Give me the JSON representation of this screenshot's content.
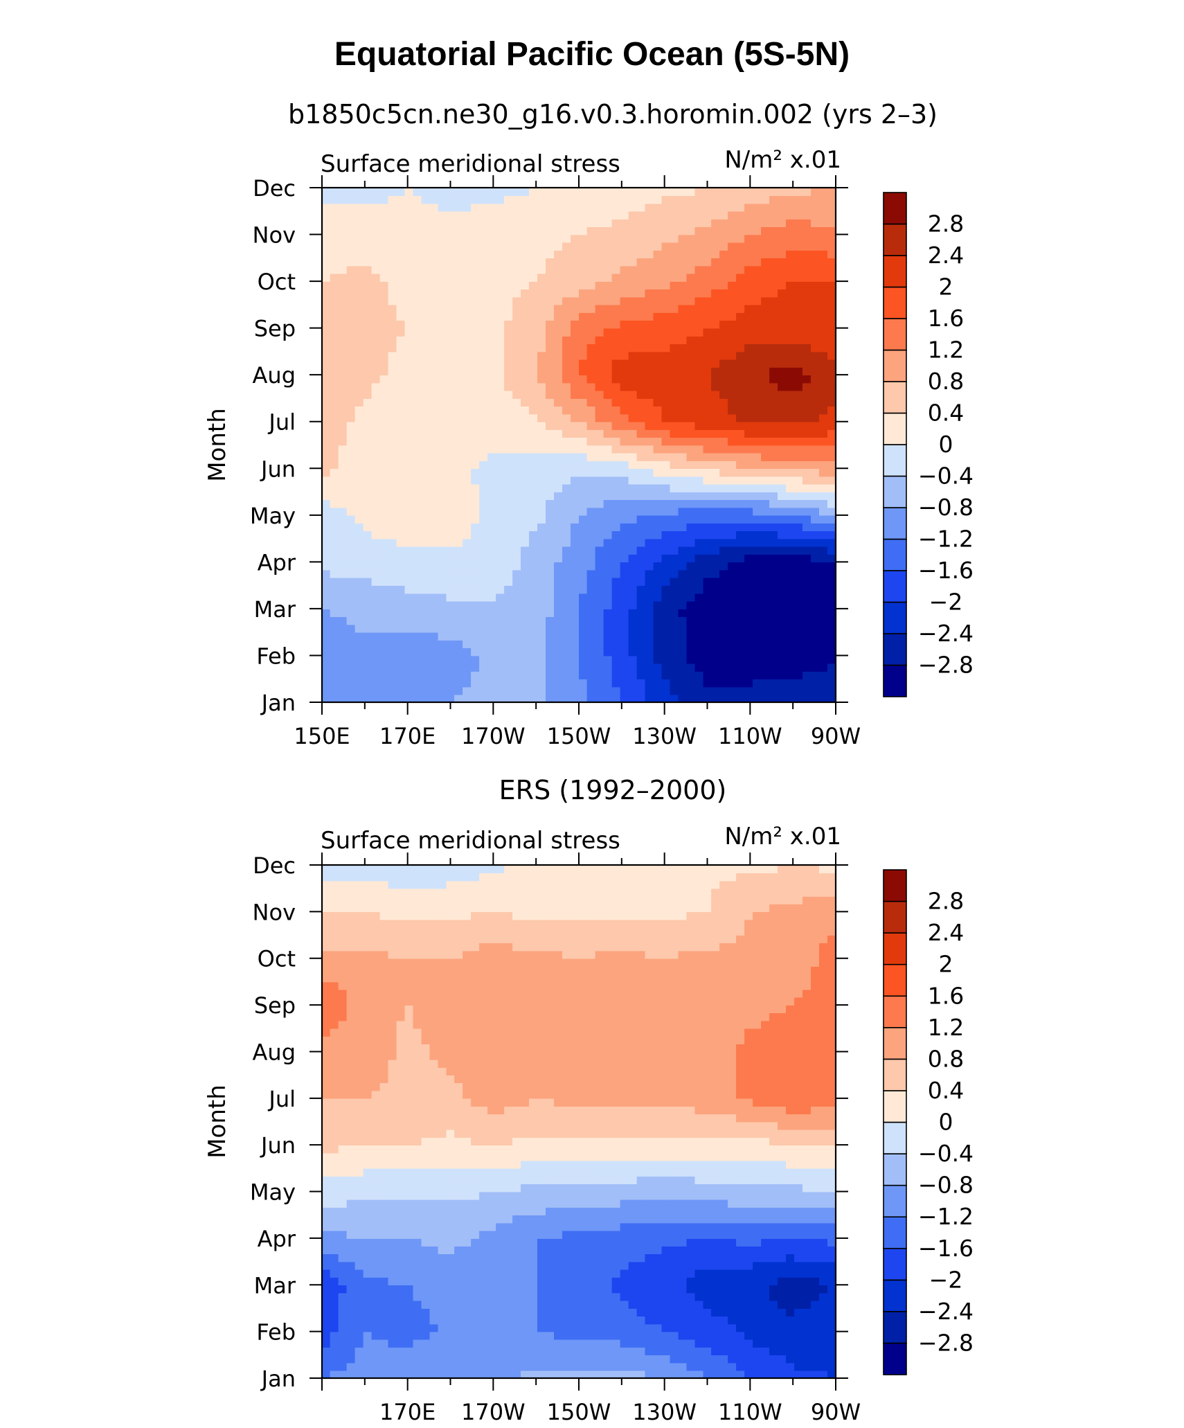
{
  "title": "Equatorial Pacific Ocean (5S-5N)",
  "colorbar_colors": [
    "#00008b",
    "#0020a8",
    "#0232d0",
    "#1d46f0",
    "#3f6ef4",
    "#6e97f7",
    "#a2bef8",
    "#cfe2fb",
    "#ffe9d6",
    "#fdc8ac",
    "#fca47e",
    "#fc7a4e",
    "#fc5422",
    "#e23a0c",
    "#b82c0c",
    "#8b0b04"
  ],
  "colorbar_labels": [
    "-2.8",
    "-2.4",
    "-2",
    "-1.6",
    "-1.2",
    "-0.8",
    "-0.4",
    "0",
    "0.4",
    "0.8",
    "1.2",
    "1.6",
    "2",
    "2.4",
    "2.8"
  ],
  "colorbar_labels_text": [
    "−2.8",
    "−2.4",
    "−2",
    "−1.6",
    "−1.2",
    "−0.8",
    "−0.4",
    "0",
    "0.4",
    "0.8",
    "1.2",
    "1.6",
    "2",
    "2.4",
    "2.8"
  ],
  "chart_data": [
    {
      "type": "heatmap",
      "title": "b1850c5cn.ne30_g16.v0.3.horomin.002 (yrs 2–3)",
      "left_label": "Surface meridional stress",
      "units": "N/m² x.01",
      "xlabel": "",
      "ylabel": "Month",
      "x_ticks": [
        "150E",
        "170E",
        "170W",
        "150W",
        "130W",
        "110W",
        "90W"
      ],
      "y_ticks": [
        "Jan",
        "Feb",
        "Mar",
        "Apr",
        "May",
        "Jun",
        "Jul",
        "Aug",
        "Sep",
        "Oct",
        "Nov",
        "Dec"
      ],
      "x_values": [
        "150E",
        "160E",
        "170E",
        "180",
        "170W",
        "160W",
        "150W",
        "140W",
        "130W",
        "120W",
        "110W",
        "100W",
        "90W"
      ],
      "months": [
        "Jan",
        "Feb",
        "Mar",
        "Apr",
        "May",
        "Jun",
        "Jul",
        "Aug",
        "Sep",
        "Oct",
        "Nov",
        "Dec"
      ],
      "values": [
        [
          -1.2,
          -1.0,
          -0.9,
          -0.8,
          -0.7,
          -0.7,
          -1.1,
          -1.6,
          -2.2,
          -2.7,
          -2.6,
          -2.5,
          -2.4
        ],
        [
          -1.0,
          -0.9,
          -1.0,
          -1.0,
          -0.7,
          -0.7,
          -1.2,
          -1.8,
          -2.6,
          -3.0,
          -3.1,
          -3.1,
          -2.9
        ],
        [
          -0.8,
          -0.7,
          -0.6,
          -0.5,
          -0.5,
          -0.6,
          -1.2,
          -1.8,
          -2.6,
          -3.1,
          -3.2,
          -3.2,
          -3.0
        ],
        [
          -0.3,
          -0.2,
          -0.1,
          -0.1,
          -0.1,
          -0.6,
          -1.0,
          -1.6,
          -2.1,
          -2.6,
          -3.0,
          -3.0,
          -2.9
        ],
        [
          -0.2,
          0.1,
          0.2,
          0.2,
          -0.1,
          -0.3,
          -0.8,
          -1.1,
          -1.3,
          -1.4,
          -1.4,
          -1.2,
          -0.8
        ],
        [
          0.5,
          0.2,
          0.2,
          0.1,
          -0.1,
          -0.2,
          -0.3,
          -0.2,
          0.2,
          0.5,
          0.7,
          0.9,
          1.0
        ],
        [
          0.6,
          0.3,
          0.1,
          0.3,
          0.2,
          0.3,
          0.8,
          1.5,
          2.0,
          2.2,
          2.5,
          2.5,
          2.3
        ],
        [
          0.8,
          0.5,
          0.3,
          0.2,
          0.3,
          0.8,
          1.6,
          2.2,
          2.2,
          2.4,
          2.7,
          3.0,
          2.5
        ],
        [
          0.6,
          0.5,
          0.4,
          0.3,
          0.3,
          0.6,
          1.4,
          1.7,
          1.8,
          2.0,
          2.2,
          2.2,
          2.0
        ],
        [
          0.4,
          0.5,
          0.3,
          0.3,
          0.3,
          0.4,
          0.6,
          0.9,
          1.1,
          1.4,
          1.8,
          2.0,
          2.0
        ],
        [
          0.3,
          0.2,
          0.1,
          0.1,
          0.2,
          0.3,
          0.4,
          0.5,
          0.7,
          0.9,
          1.2,
          1.4,
          1.3
        ],
        [
          -0.2,
          -0.1,
          0.0,
          -0.1,
          -0.1,
          0.0,
          0.1,
          0.2,
          0.3,
          0.4,
          0.6,
          0.7,
          0.8
        ]
      ]
    },
    {
      "type": "heatmap",
      "title": "ERS (1992–2000)",
      "left_label": "Surface meridional stress",
      "units": "N/m² x.01",
      "xlabel": "",
      "ylabel": "Month",
      "x_ticks": [
        "170E",
        "170W",
        "150W",
        "130W",
        "110W",
        "90W"
      ],
      "y_ticks": [
        "Jan",
        "Feb",
        "Mar",
        "Apr",
        "May",
        "Jun",
        "Jul",
        "Aug",
        "Sep",
        "Oct",
        "Nov",
        "Dec"
      ],
      "x_values": [
        "150E",
        "160E",
        "170E",
        "180",
        "170W",
        "160W",
        "150W",
        "140W",
        "130W",
        "120W",
        "110W",
        "100W",
        "90W"
      ],
      "months": [
        "Jan",
        "Feb",
        "Mar",
        "Apr",
        "May",
        "Jun",
        "Jul",
        "Aug",
        "Sep",
        "Oct",
        "Nov",
        "Dec"
      ],
      "values": [
        [
          -1.2,
          -1.0,
          -0.8,
          -0.8,
          -0.9,
          -0.7,
          -0.7,
          -0.6,
          -0.9,
          -1.2,
          -1.6,
          -1.9,
          -2.0
        ],
        [
          -1.8,
          -1.2,
          -1.4,
          -1.1,
          -1.2,
          -1.2,
          -1.3,
          -1.4,
          -1.6,
          -1.8,
          -2.1,
          -2.3,
          -2.1
        ],
        [
          -1.9,
          -1.3,
          -1.2,
          -1.0,
          -1.1,
          -1.2,
          -1.3,
          -1.7,
          -1.9,
          -2.2,
          -2.3,
          -2.6,
          -2.4
        ],
        [
          -0.9,
          -0.8,
          -0.8,
          -0.7,
          -0.9,
          -1.2,
          -1.3,
          -1.4,
          -1.5,
          -1.6,
          -1.5,
          -1.6,
          -1.5
        ],
        [
          -0.2,
          -0.3,
          -0.3,
          -0.3,
          -0.4,
          -0.5,
          -0.5,
          -0.6,
          -0.7,
          -0.6,
          -0.5,
          -0.5,
          -0.4
        ],
        [
          0.5,
          0.4,
          0.4,
          0.3,
          0.4,
          0.3,
          0.3,
          0.3,
          0.3,
          0.3,
          0.2,
          0.4,
          0.4
        ],
        [
          0.8,
          0.8,
          0.7,
          0.7,
          1.0,
          0.8,
          0.9,
          0.9,
          0.9,
          1.0,
          1.3,
          1.5,
          1.4
        ],
        [
          1.0,
          1.0,
          0.7,
          0.9,
          1.0,
          1.0,
          1.2,
          1.1,
          1.2,
          1.0,
          1.3,
          1.4,
          1.5
        ],
        [
          1.6,
          1.0,
          0.8,
          1.0,
          1.1,
          1.0,
          1.1,
          1.1,
          1.1,
          1.0,
          1.1,
          1.2,
          1.5
        ],
        [
          0.9,
          0.9,
          0.8,
          0.8,
          1.0,
          0.9,
          0.8,
          0.9,
          0.8,
          0.9,
          0.9,
          0.9,
          1.4
        ],
        [
          0.4,
          0.4,
          0.3,
          0.3,
          0.4,
          0.3,
          0.3,
          0.3,
          0.3,
          0.4,
          0.8,
          0.9,
          1.1
        ],
        [
          -0.2,
          -0.2,
          -0.3,
          -0.2,
          -0.1,
          0.1,
          0.2,
          0.2,
          0.2,
          0.3,
          0.3,
          0.4,
          0.3
        ]
      ]
    }
  ]
}
